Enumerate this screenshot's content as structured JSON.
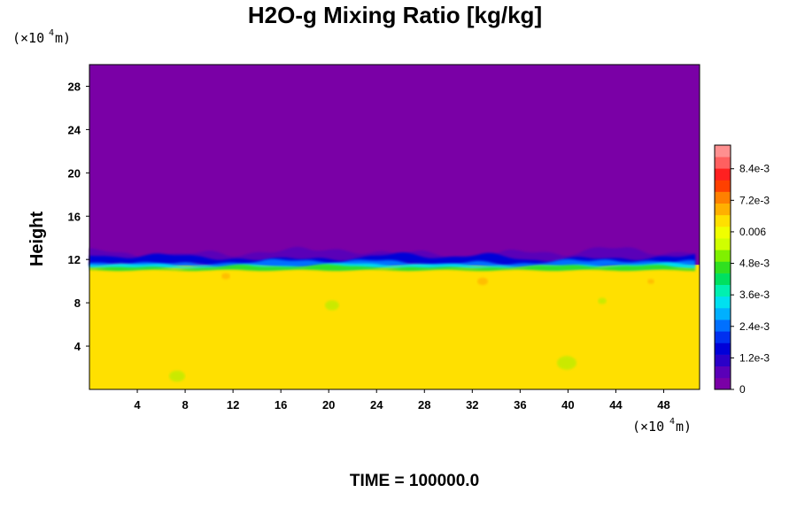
{
  "chart_data": {
    "type": "heatmap",
    "title": "H2O-g Mixing Ratio [kg/kg]",
    "ylabel": "Height",
    "x_unit": {
      "prefix": "(×10",
      "exponent": "4",
      "suffix": " m)"
    },
    "y_unit": {
      "prefix": "(×10",
      "exponent": "4",
      "suffix": " m)"
    },
    "xlim": [
      0,
      51
    ],
    "ylim": [
      0,
      30
    ],
    "x_ticks": [
      4,
      8,
      12,
      16,
      20,
      24,
      28,
      32,
      36,
      40,
      44,
      48
    ],
    "y_ticks": [
      4,
      8,
      12,
      16,
      20,
      24,
      28
    ],
    "colorbar": {
      "min": 0,
      "max": 0.0093,
      "tick_values": [
        0,
        0.0012,
        0.0024,
        0.0036,
        0.0048,
        0.006,
        0.0072,
        0.0084
      ],
      "tick_labels": [
        "0",
        "1.2e-3",
        "2.4e-3",
        "3.6e-3",
        "4.8e-3",
        "0.006",
        "7.2e-3",
        "8.4e-3"
      ],
      "colors": [
        "#7a00a6",
        "#5a00b8",
        "#2a00c8",
        "#0000d8",
        "#0030f0",
        "#0070ff",
        "#00b0ff",
        "#00e0f0",
        "#00f0b0",
        "#00e060",
        "#30e020",
        "#80f000",
        "#d0ff00",
        "#f0ff00",
        "#ffe000",
        "#ffb000",
        "#ff8000",
        "#ff4000",
        "#ff2020",
        "#ff6060",
        "#ff9090"
      ]
    },
    "regions": {
      "upper_value": 0,
      "lower_value": 0.0062,
      "transition_height": 11.5
    },
    "footer": {
      "label": "TIME = ",
      "value": "100000.0"
    }
  }
}
